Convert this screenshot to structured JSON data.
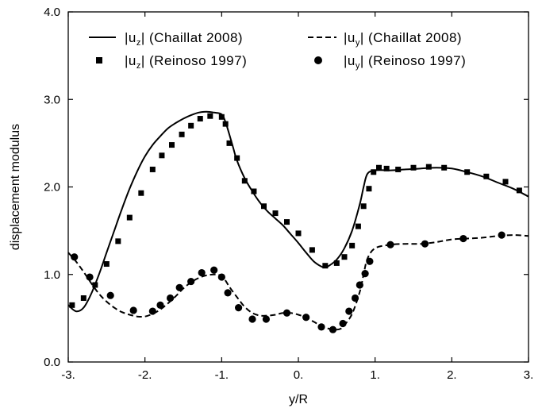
{
  "chart_data": {
    "type": "line",
    "xlabel": "y/R",
    "ylabel": "displacement modulus",
    "xlim": [
      -3,
      3
    ],
    "ylim": [
      0,
      4
    ],
    "xticks": [
      -3,
      -2,
      -1,
      0,
      1,
      2,
      3
    ],
    "xtick_labels": [
      "-3.",
      "-2.",
      "-1.",
      "0.",
      "1.",
      "2.",
      "3."
    ],
    "yticks": [
      0,
      1,
      2,
      3,
      4
    ],
    "ytick_labels": [
      "0.0",
      "1.0",
      "2.0",
      "3.0",
      "4.0"
    ],
    "grid": false,
    "legend_position": "top",
    "series": [
      {
        "name": "|u_z| (Chaillat 2008)",
        "style": "solid-line",
        "color": "#000000",
        "x": [
          -3.0,
          -2.9,
          -2.8,
          -2.7,
          -2.6,
          -2.5,
          -2.4,
          -2.3,
          -2.2,
          -2.1,
          -2.0,
          -1.9,
          -1.8,
          -1.7,
          -1.6,
          -1.5,
          -1.4,
          -1.3,
          -1.2,
          -1.1,
          -1.0,
          -0.95,
          -0.9,
          -0.85,
          -0.8,
          -0.7,
          -0.6,
          -0.5,
          -0.4,
          -0.3,
          -0.2,
          -0.1,
          0.0,
          0.1,
          0.2,
          0.3,
          0.35,
          0.4,
          0.5,
          0.6,
          0.7,
          0.8,
          0.85,
          0.9,
          1.0,
          1.2,
          1.4,
          1.6,
          1.8,
          2.0,
          2.2,
          2.4,
          2.6,
          2.8,
          3.0
        ],
        "y": [
          0.65,
          0.58,
          0.62,
          0.78,
          1.0,
          1.25,
          1.5,
          1.75,
          1.98,
          2.18,
          2.35,
          2.48,
          2.58,
          2.67,
          2.73,
          2.78,
          2.82,
          2.85,
          2.86,
          2.85,
          2.83,
          2.74,
          2.6,
          2.45,
          2.3,
          2.1,
          1.95,
          1.82,
          1.72,
          1.64,
          1.56,
          1.46,
          1.36,
          1.25,
          1.15,
          1.09,
          1.08,
          1.1,
          1.17,
          1.3,
          1.5,
          1.8,
          2.0,
          2.15,
          2.19,
          2.19,
          2.2,
          2.21,
          2.22,
          2.21,
          2.17,
          2.12,
          2.05,
          1.98,
          1.89
        ]
      },
      {
        "name": "|u_y| (Chaillat 2008)",
        "style": "dashed-line",
        "color": "#000000",
        "x": [
          -3.0,
          -2.9,
          -2.8,
          -2.7,
          -2.6,
          -2.5,
          -2.4,
          -2.3,
          -2.2,
          -2.1,
          -2.0,
          -1.9,
          -1.8,
          -1.7,
          -1.6,
          -1.5,
          -1.4,
          -1.3,
          -1.2,
          -1.1,
          -1.05,
          -1.0,
          -0.95,
          -0.9,
          -0.8,
          -0.7,
          -0.6,
          -0.5,
          -0.4,
          -0.3,
          -0.2,
          -0.1,
          0.0,
          0.1,
          0.2,
          0.3,
          0.4,
          0.5,
          0.55,
          0.6,
          0.7,
          0.8,
          0.85,
          0.9,
          1.0,
          1.2,
          1.4,
          1.6,
          1.8,
          2.0,
          2.2,
          2.4,
          2.6,
          2.8,
          3.0
        ],
        "y": [
          1.25,
          1.15,
          1.03,
          0.9,
          0.78,
          0.69,
          0.62,
          0.57,
          0.54,
          0.52,
          0.52,
          0.55,
          0.6,
          0.67,
          0.75,
          0.84,
          0.91,
          0.96,
          0.99,
          1.0,
          1.0,
          0.98,
          0.93,
          0.86,
          0.74,
          0.63,
          0.56,
          0.53,
          0.53,
          0.54,
          0.56,
          0.56,
          0.54,
          0.51,
          0.46,
          0.41,
          0.38,
          0.37,
          0.38,
          0.42,
          0.55,
          0.8,
          1.0,
          1.18,
          1.3,
          1.34,
          1.35,
          1.35,
          1.37,
          1.4,
          1.41,
          1.42,
          1.44,
          1.45,
          1.44
        ]
      },
      {
        "name": "|u_z| (Reinoso 1997)",
        "style": "square-markers",
        "color": "#000000",
        "x": [
          -2.95,
          -2.8,
          -2.65,
          -2.5,
          -2.35,
          -2.2,
          -2.05,
          -1.9,
          -1.78,
          -1.65,
          -1.52,
          -1.4,
          -1.28,
          -1.15,
          -1.0,
          -0.95,
          -0.9,
          -0.8,
          -0.7,
          -0.58,
          -0.45,
          -0.3,
          -0.15,
          0.0,
          0.18,
          0.35,
          0.5,
          0.6,
          0.7,
          0.78,
          0.85,
          0.92,
          0.98,
          1.05,
          1.15,
          1.3,
          1.5,
          1.7,
          1.9,
          2.2,
          2.45,
          2.7,
          2.88
        ],
        "y": [
          0.65,
          0.73,
          0.88,
          1.12,
          1.38,
          1.65,
          1.93,
          2.2,
          2.36,
          2.48,
          2.6,
          2.7,
          2.78,
          2.81,
          2.8,
          2.72,
          2.5,
          2.33,
          2.07,
          1.95,
          1.78,
          1.7,
          1.6,
          1.47,
          1.28,
          1.1,
          1.13,
          1.2,
          1.33,
          1.55,
          1.78,
          1.98,
          2.17,
          2.22,
          2.21,
          2.2,
          2.22,
          2.23,
          2.22,
          2.17,
          2.12,
          2.06,
          1.96
        ]
      },
      {
        "name": "|u_y| (Reinoso 1997)",
        "style": "circle-markers",
        "color": "#000000",
        "x": [
          -2.92,
          -2.72,
          -2.45,
          -2.15,
          -1.9,
          -1.8,
          -1.67,
          -1.55,
          -1.4,
          -1.26,
          -1.1,
          -1.0,
          -0.92,
          -0.78,
          -0.6,
          -0.42,
          -0.15,
          0.1,
          0.3,
          0.45,
          0.58,
          0.66,
          0.74,
          0.8,
          0.87,
          0.93,
          1.2,
          1.65,
          2.15,
          2.65
        ],
        "y": [
          1.2,
          0.97,
          0.76,
          0.59,
          0.58,
          0.65,
          0.73,
          0.85,
          0.92,
          1.02,
          1.05,
          0.97,
          0.79,
          0.62,
          0.49,
          0.49,
          0.56,
          0.51,
          0.4,
          0.37,
          0.44,
          0.58,
          0.73,
          0.88,
          1.01,
          1.15,
          1.34,
          1.35,
          1.41,
          1.45
        ]
      }
    ]
  },
  "legend": [
    {
      "key": "uz_chaillat",
      "main": "|u",
      "sub": "z",
      "tail": "| (Chaillat 2008)",
      "symbol": "solid-line"
    },
    {
      "key": "uy_chaillat",
      "main": "|u",
      "sub": "y",
      "tail": "| (Chaillat 2008)",
      "symbol": "dashed-line"
    },
    {
      "key": "uz_reinoso",
      "main": "|u",
      "sub": "z",
      "tail": "| (Reinoso 1997)",
      "symbol": "square-marker"
    },
    {
      "key": "uy_reinoso",
      "main": "|u",
      "sub": "y",
      "tail": "| (Reinoso 1997)",
      "symbol": "circle-marker"
    }
  ]
}
